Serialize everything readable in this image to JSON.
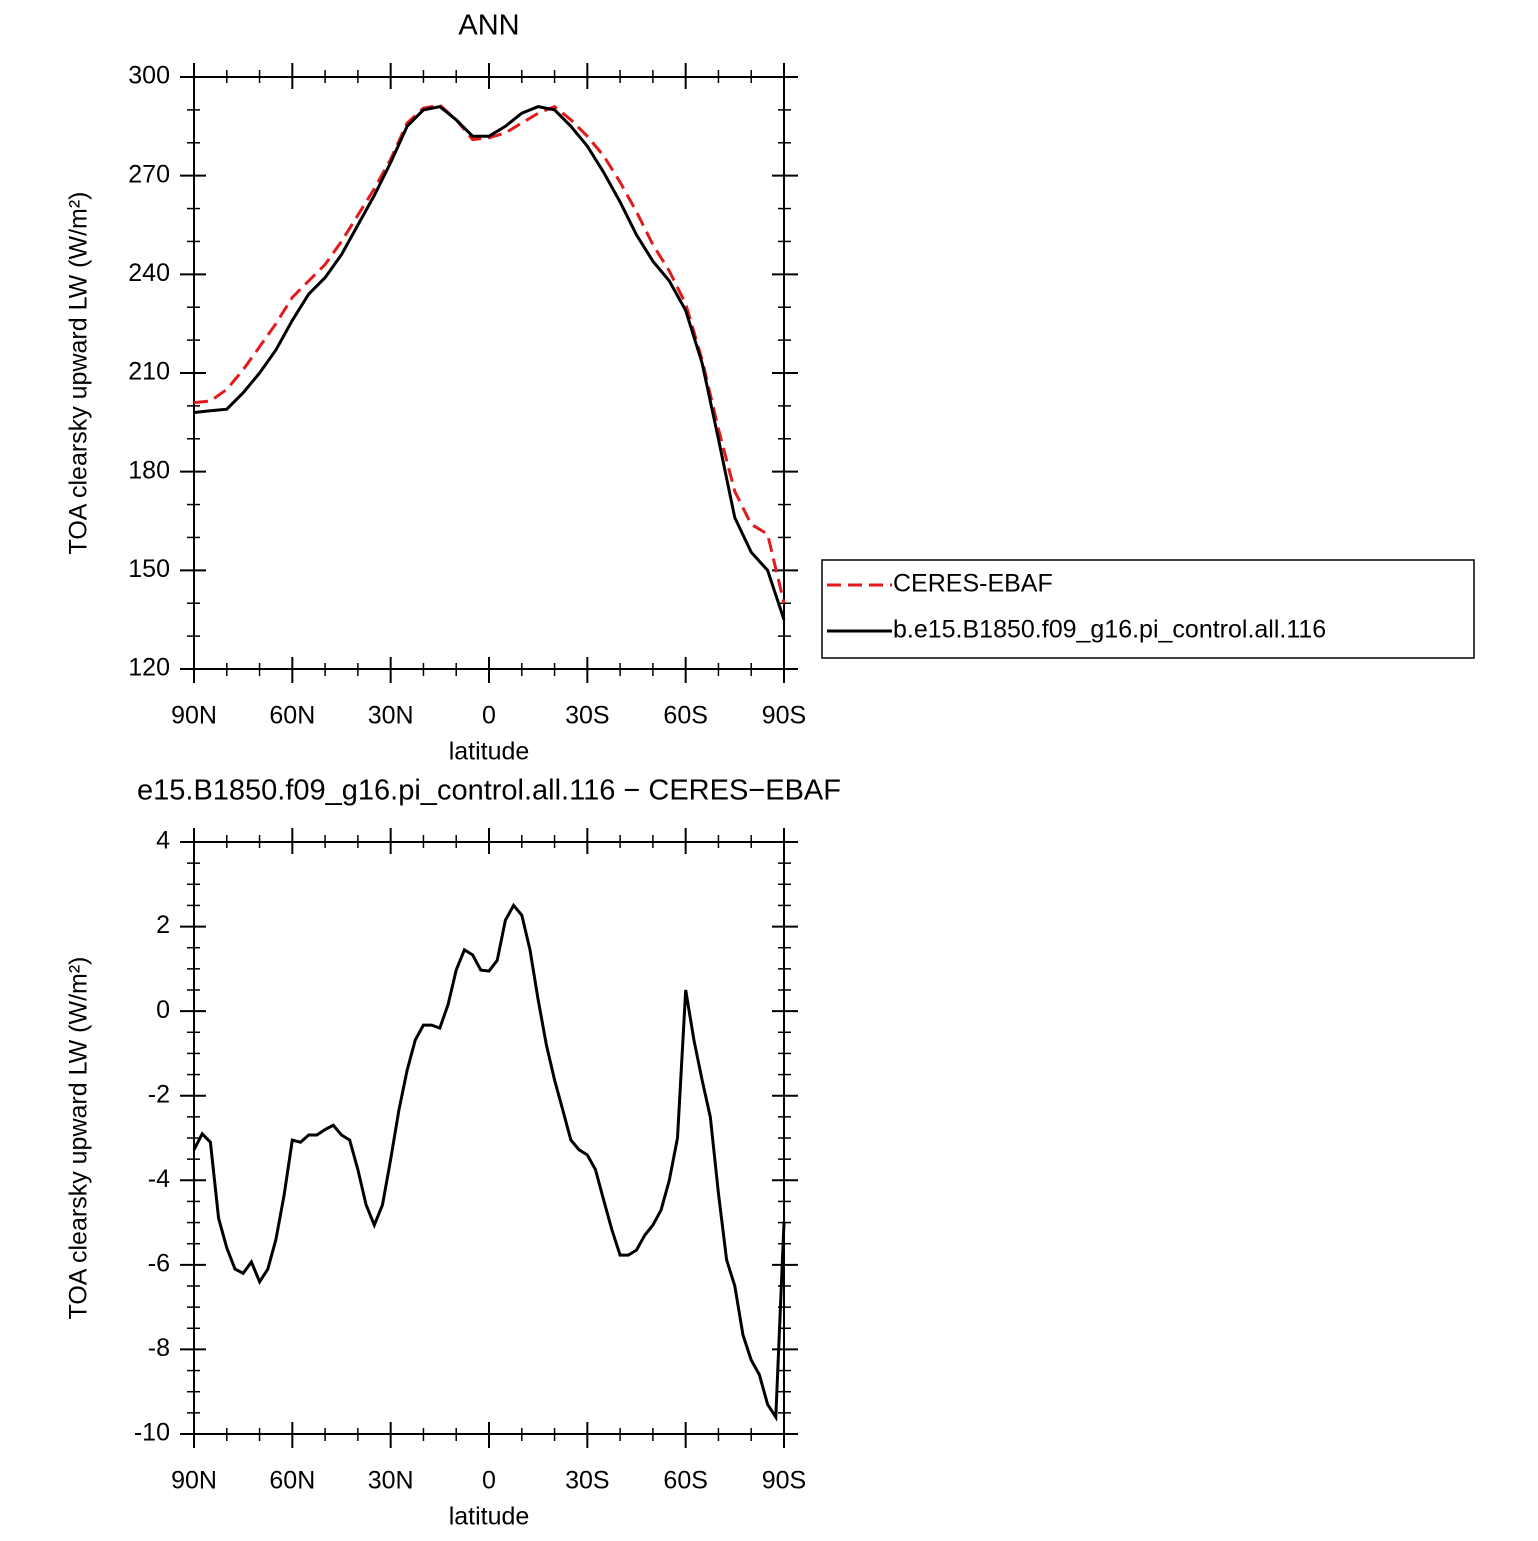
{
  "chart_data": [
    {
      "type": "line",
      "title": "ANN",
      "x_label": "latitude",
      "y_label": "TOA clearsky upward LW (W/m²)",
      "x": [
        90,
        85,
        80,
        75,
        70,
        65,
        60,
        55,
        50,
        45,
        40,
        35,
        30,
        25,
        20,
        15,
        10,
        5,
        0,
        -5,
        -10,
        -15,
        -20,
        -25,
        -30,
        -35,
        -40,
        -45,
        -50,
        -55,
        -60,
        -65,
        -70,
        -75,
        -80,
        -85,
        -90
      ],
      "series": [
        {
          "name": "CERES-EBAF",
          "color": "#e31a1c",
          "line_style": "dashed",
          "values": [
            201,
            201.5,
            205,
            211,
            218,
            225,
            233,
            238,
            243,
            250,
            258,
            266,
            275,
            286,
            290.5,
            291.5,
            287,
            281,
            281.5,
            283,
            286,
            289,
            291,
            287,
            282,
            276,
            268,
            259,
            249,
            241,
            231,
            214,
            193,
            174,
            164,
            161,
            140
          ]
        },
        {
          "name": "b.e15.B1850.f09_g16.pi_control.all.116",
          "color": "#000000",
          "line_style": "solid",
          "values": [
            198,
            198.5,
            199,
            204,
            210,
            217,
            226,
            234,
            239,
            246,
            255,
            264,
            274,
            285,
            290,
            291,
            287,
            282,
            282,
            285,
            289,
            291,
            290,
            285,
            279,
            271,
            262,
            252,
            244,
            238,
            229,
            213,
            190,
            166,
            155.5,
            150,
            135
          ]
        }
      ],
      "xlim": [
        90,
        -90
      ],
      "xticks": [
        {
          "value": 90,
          "label": "90N"
        },
        {
          "value": 60,
          "label": "60N"
        },
        {
          "value": 30,
          "label": "30N"
        },
        0,
        {
          "value": -30,
          "label": "30S"
        },
        {
          "value": -60,
          "label": "60S"
        },
        {
          "value": -90,
          "label": "90S"
        }
      ],
      "ylim": [
        120,
        300
      ],
      "yticks": [
        120,
        150,
        180,
        210,
        240,
        270,
        300
      ],
      "legend": "right"
    },
    {
      "type": "line",
      "title": "e15.B1850.f09_g16.pi_control.all.116 − CERES−EBAF",
      "x_label": "latitude",
      "y_label": "TOA clearsky upward LW (W/m²)",
      "x": [
        90,
        87.5,
        85,
        82.5,
        80,
        77.5,
        75,
        72.5,
        70,
        67.5,
        65,
        62.5,
        60,
        57.5,
        55,
        52.5,
        50,
        47.5,
        45,
        42.5,
        40,
        37.5,
        35,
        32.5,
        30,
        27.5,
        25,
        22.5,
        20,
        17.5,
        15,
        12.5,
        10,
        7.5,
        5,
        2.5,
        0,
        -2.5,
        -5,
        -7.5,
        -10,
        -12.5,
        -15,
        -17.5,
        -20,
        -22.5,
        -25,
        -27.5,
        -30,
        -32.5,
        -35,
        -37.5,
        -40,
        -42.5,
        -45,
        -47.5,
        -50,
        -52.5,
        -55,
        -57.5,
        -60,
        -62.5,
        -65,
        -67.5,
        -70,
        -72.5,
        -75,
        -77.5,
        -80,
        -82.5,
        -85,
        -87.5,
        -90
      ],
      "values": [
        -3.28,
        -2.9,
        -3.1,
        -4.9,
        -5.6,
        -6.1,
        -6.2,
        -5.93,
        -6.4,
        -6.1,
        -5.4,
        -4.35,
        -3.05,
        -3.1,
        -2.93,
        -2.93,
        -2.8,
        -2.7,
        -2.93,
        -3.05,
        -3.75,
        -4.58,
        -5.06,
        -4.58,
        -3.5,
        -2.34,
        -1.4,
        -0.68,
        -0.33,
        -0.33,
        -0.4,
        0.15,
        0.97,
        1.45,
        1.33,
        0.97,
        0.95,
        1.2,
        2.15,
        2.5,
        2.27,
        1.45,
        0.26,
        -0.8,
        -1.63,
        -2.34,
        -3.05,
        -3.28,
        -3.4,
        -3.75,
        -4.47,
        -5.17,
        -5.77,
        -5.77,
        -5.65,
        -5.3,
        -5.06,
        -4.7,
        -4.0,
        -3.0,
        0.5,
        -0.68,
        -1.63,
        -2.5,
        -4.3,
        -5.88,
        -6.5,
        -7.66,
        -8.25,
        -8.6,
        -9.3,
        -9.6,
        -5.0
      ],
      "color": "#000000",
      "xlim": [
        90,
        -90
      ],
      "xticks": [
        {
          "value": 90,
          "label": "90N"
        },
        {
          "value": 60,
          "label": "60N"
        },
        {
          "value": 30,
          "label": "30N"
        },
        0,
        {
          "value": -30,
          "label": "30S"
        },
        {
          "value": -60,
          "label": "60S"
        },
        {
          "value": -90,
          "label": "90S"
        }
      ],
      "ylim": [
        -10,
        4
      ],
      "yticks": [
        -10,
        -8,
        -6,
        -4,
        -2,
        0,
        2,
        4
      ]
    }
  ]
}
